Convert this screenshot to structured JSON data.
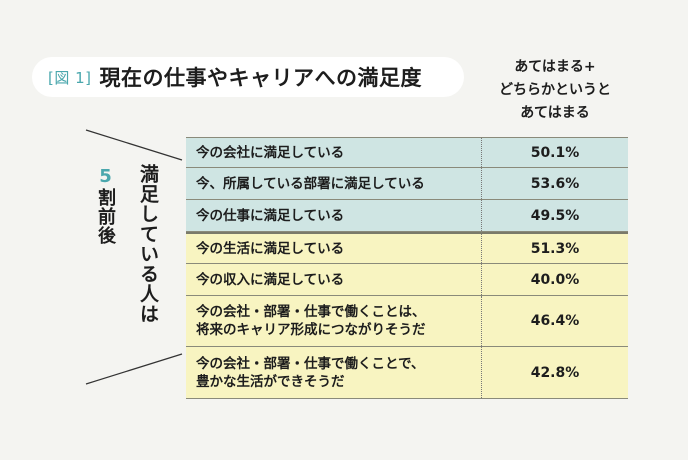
{
  "title": {
    "figure_tag": "[図 1]",
    "text": "現在の仕事やキャリアへの満足度"
  },
  "column_header": [
    "あてはまる+",
    "どちらかというと",
    "あてはまる"
  ],
  "side_label": {
    "main": "満足している人は",
    "five": "5",
    "rest": "割前後"
  },
  "colors": {
    "blue_rows": "#cfe5e3",
    "yellow_rows": "#f8f4c1",
    "accent": "#4aa7ad"
  },
  "chart_data": {
    "type": "table",
    "rows": [
      {
        "label": "今の会社に満足している",
        "value": "50.1%",
        "group": "blue"
      },
      {
        "label": "今、所属している部署に満足している",
        "value": "53.6%",
        "group": "blue"
      },
      {
        "label": "今の仕事に満足している",
        "value": "49.5%",
        "group": "blue"
      },
      {
        "label": "今の生活に満足している",
        "value": "51.3%",
        "group": "yellow"
      },
      {
        "label": "今の収入に満足している",
        "value": "40.0%",
        "group": "yellow"
      },
      {
        "label": "今の会社・部署・仕事で働くことは、将来のキャリア形成につながりそうだ",
        "label_lines": [
          "今の会社・部署・仕事で働くことは、",
          "将来のキャリア形成につながりそうだ"
        ],
        "value": "46.4%",
        "group": "yellow"
      },
      {
        "label": "今の会社・部署・仕事で働くことで、豊かな生活ができそうだ",
        "label_lines": [
          "今の会社・部署・仕事で働くことで、",
          "豊かな生活ができそうだ"
        ],
        "value": "42.8%",
        "group": "yellow"
      }
    ]
  }
}
